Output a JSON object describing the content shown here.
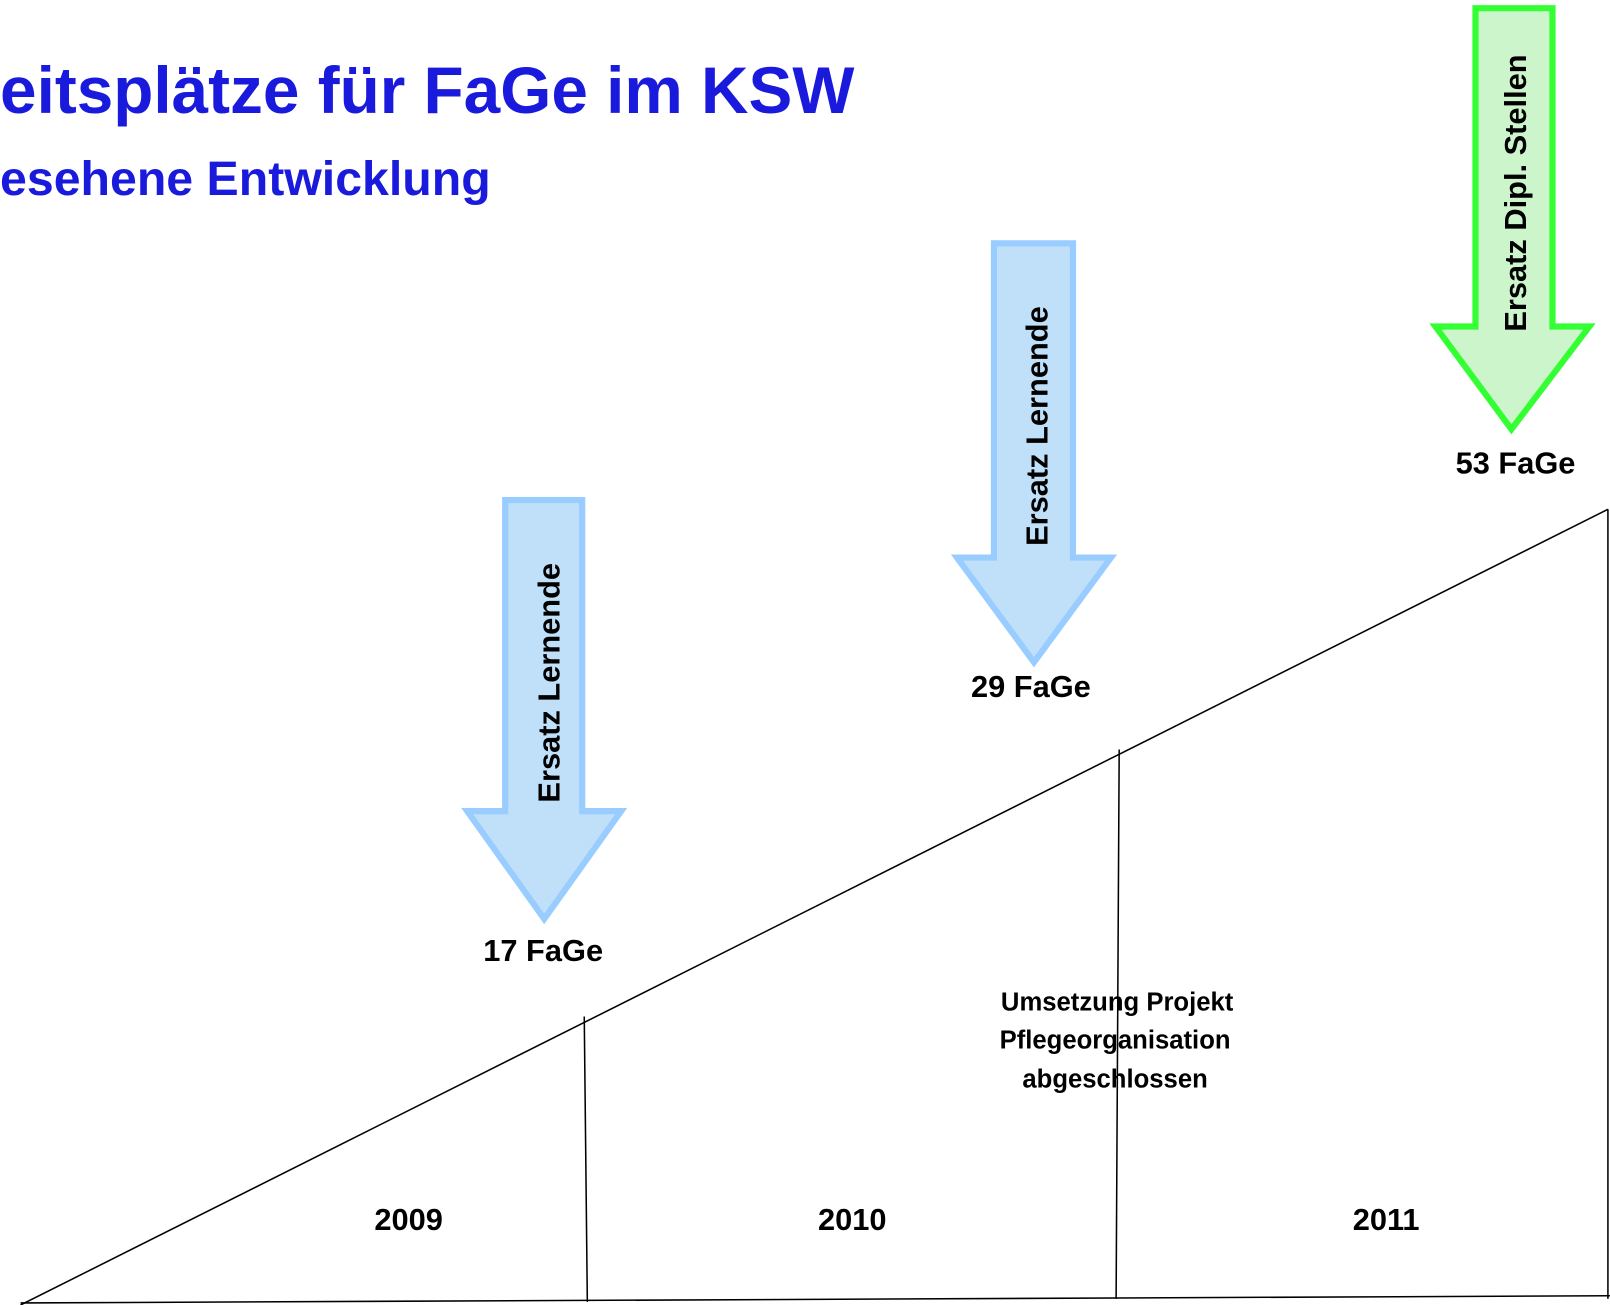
{
  "header": {
    "title": "eitsplätze für FaGe im KSW",
    "subtitle": "esehene Entwicklung"
  },
  "arrows": [
    {
      "label": "Ersatz Lernende",
      "count": "17 FaGe"
    },
    {
      "label": "Ersatz Lernende",
      "count": "29 FaGe"
    },
    {
      "label": "Ersatz Dipl. Stellen",
      "count": "53 FaGe"
    }
  ],
  "years": [
    "2009",
    "2010",
    "2011"
  ],
  "note": [
    "Umsetzung Projekt",
    "Pflegeorganisation",
    "abgeschlossen"
  ]
}
